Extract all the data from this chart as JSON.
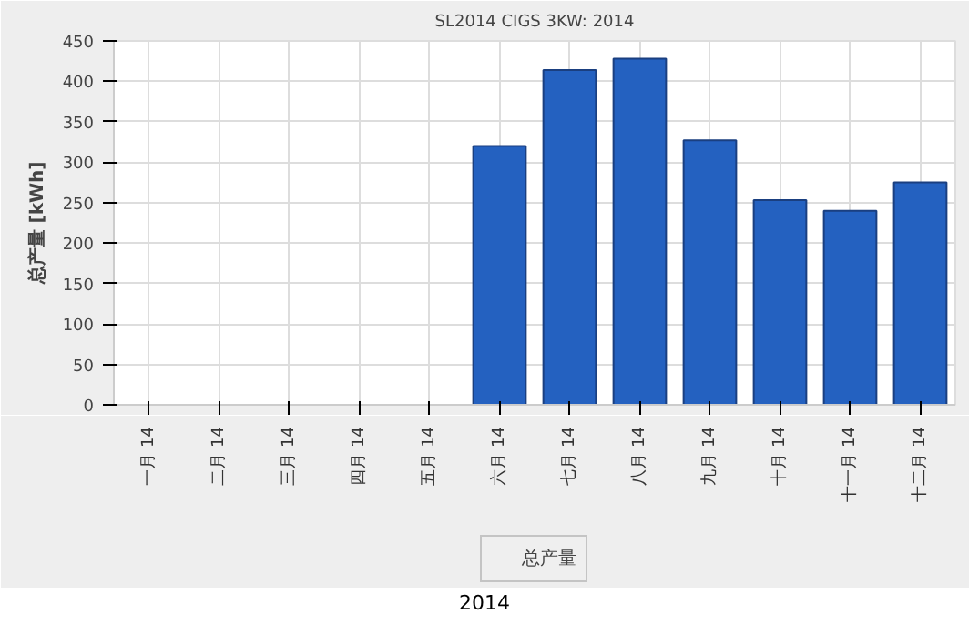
{
  "chart_data": {
    "type": "bar",
    "title": "SL2014 CIGS 3KW: 2014",
    "ylabel": "总产量 [kWh]",
    "categories": [
      "一月 14",
      "二月 14",
      "三月 14",
      "四月 14",
      "五月 14",
      "六月 14",
      "七月 14",
      "八月 14",
      "九月 14",
      "十月 14",
      "十一月 14",
      "十二月 14"
    ],
    "series": [
      {
        "name": "总产量",
        "color": "#2461c0",
        "values": [
          null,
          null,
          null,
          null,
          null,
          320,
          414,
          428,
          327,
          253,
          240,
          275
        ]
      }
    ],
    "ylim": [
      0,
      450
    ],
    "yticks": [
      0,
      50,
      100,
      150,
      200,
      250,
      300,
      350,
      400,
      450
    ],
    "grid": true,
    "legend": "bottom",
    "annotations": [
      "2014"
    ]
  }
}
